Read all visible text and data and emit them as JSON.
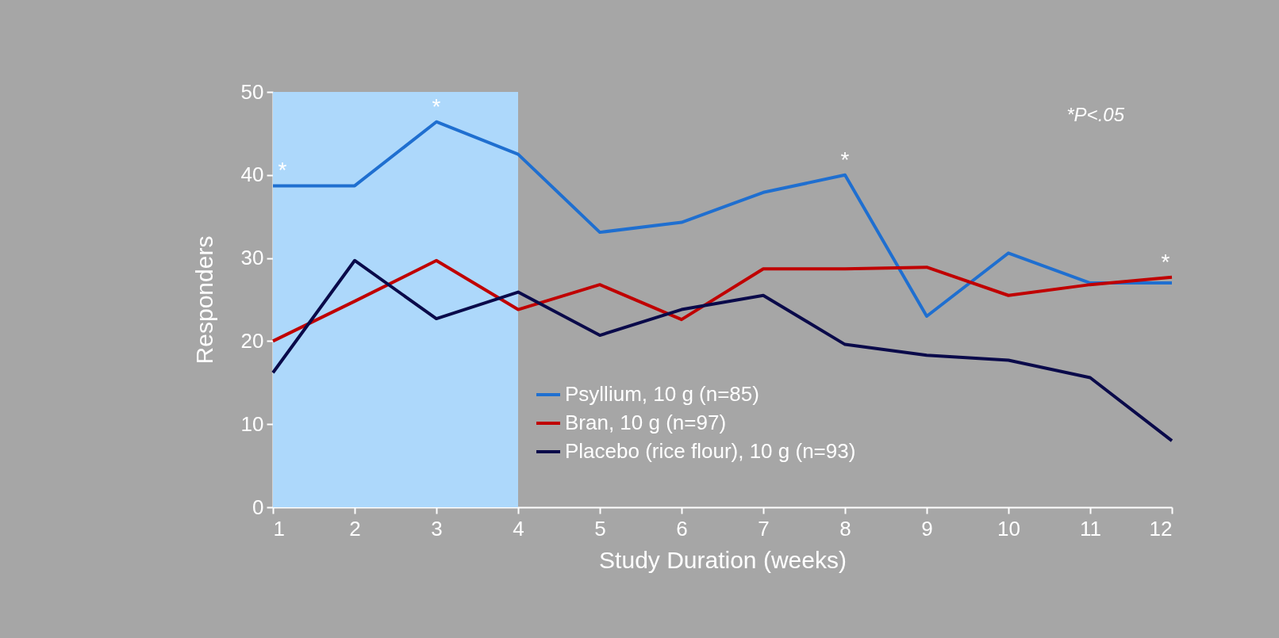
{
  "chart_data": {
    "type": "line",
    "xlabel": "Study Duration (weeks)",
    "ylabel": "Responders",
    "x": [
      1,
      2,
      3,
      4,
      5,
      6,
      7,
      8,
      9,
      10,
      11,
      12
    ],
    "series": [
      {
        "name": "Psyllium, 10 g (n=85)",
        "color": "#1f6fd0",
        "values": [
          38.7,
          38.7,
          46.4,
          42.5,
          33.1,
          34.3,
          37.9,
          40.0,
          23.0,
          30.6,
          27.0,
          27.0
        ]
      },
      {
        "name": "Bran, 10 g (n=97)",
        "color": "#c00000",
        "values": [
          20.0,
          24.8,
          29.7,
          23.8,
          26.8,
          22.6,
          28.7,
          28.7,
          28.9,
          25.5,
          26.8,
          27.7
        ]
      },
      {
        "name": "Placebo (rice flour), 10 g (n=93)",
        "color": "#0a0a4a",
        "values": [
          16.2,
          29.7,
          22.7,
          25.9,
          20.7,
          23.8,
          25.5,
          19.6,
          18.3,
          17.7,
          15.6,
          8.0
        ]
      }
    ],
    "xlim": [
      1,
      12
    ],
    "xticks": [
      1,
      2,
      3,
      4,
      5,
      6,
      7,
      8,
      9,
      10,
      11,
      12
    ],
    "ylim": [
      0,
      50
    ],
    "yticks": [
      0,
      10,
      20,
      30,
      40,
      50
    ],
    "bands": [
      {
        "axis": "x",
        "from": 1,
        "to": 4,
        "color": "#add8fb"
      }
    ],
    "annotations": [
      {
        "text": "*",
        "x": 1,
        "y": 38.7
      },
      {
        "text": "*",
        "x": 3,
        "y": 46.4
      },
      {
        "text": "*",
        "x": 8,
        "y": 40.0
      },
      {
        "text": "*",
        "x": 12,
        "y": 27.7
      },
      "*P<.05"
    ],
    "legend": "bottom right",
    "grid": false,
    "marker": "none",
    "line_style": "solid"
  }
}
